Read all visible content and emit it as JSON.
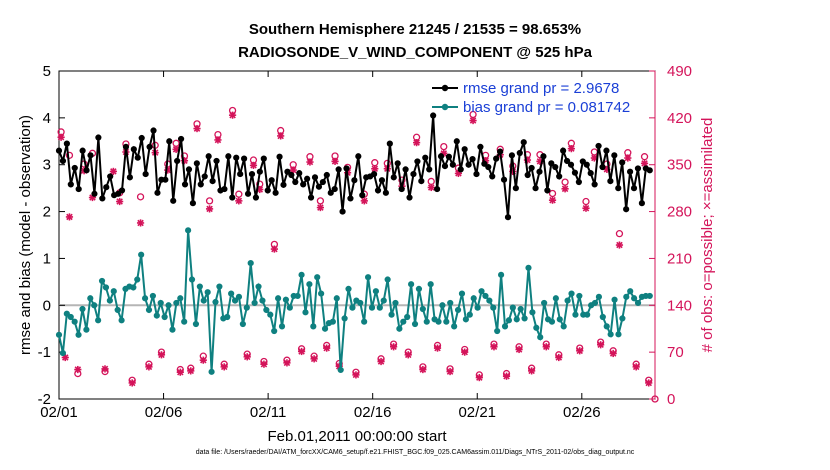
{
  "chart_data": {
    "type": "line",
    "title_line1": "Southern Hemisphere 21245 / 21535 = 98.653%",
    "title_line2": "RADIOSONDE_V_WIND_COMPONENT @ 525 hPa",
    "xlabel": "Feb.01,2011 00:00:00 start",
    "ylabel": "rmse and bias (model - observation)",
    "y2label": "# of obs: o=possible; ×=assimilated",
    "xlim": [
      0,
      28.5
    ],
    "ylim": [
      -2,
      5
    ],
    "y2lim": [
      0,
      490
    ],
    "x_ticks": [
      0,
      5,
      10,
      15,
      20,
      25
    ],
    "x_tick_labels": [
      "02/01",
      "02/06",
      "02/11",
      "02/16",
      "02/21",
      "02/26"
    ],
    "y_ticks": [
      -2,
      -1,
      0,
      1,
      2,
      3,
      4,
      5
    ],
    "y_tick_labels": [
      "-2",
      "-1",
      "0",
      "1",
      "2",
      "3",
      "4",
      "5"
    ],
    "y2_ticks": [
      0,
      70,
      140,
      210,
      280,
      350,
      420,
      490
    ],
    "y2_tick_labels": [
      "0",
      "70",
      "140",
      "210",
      "280",
      "350",
      "420",
      "490"
    ],
    "zero_line": 0,
    "colors": {
      "rmse": "#000000",
      "bias": "#0f8080",
      "obs": "#d4145a",
      "right_axis": "#d4145a"
    },
    "legend": [
      {
        "name": "rmse grand pr = 2.9678",
        "color": "#1a3fd6",
        "marker_color": "#000000"
      },
      {
        "name": "bias grand pr = 0.081742",
        "color": "#1a3fd6",
        "marker_color": "#0f8080"
      }
    ],
    "rmse": [
      3.3,
      3.08,
      3.45,
      2.58,
      2.93,
      2.48,
      3.3,
      2.88,
      3.2,
      2.38,
      3.58,
      2.28,
      2.52,
      2.75,
      2.35,
      2.38,
      2.45,
      3.38,
      2.73,
      3.33,
      3.15,
      3.57,
      2.8,
      3.38,
      3.73,
      2.4,
      2.68,
      2.68,
      3.5,
      2.23,
      3.08,
      3.55,
      2.58,
      2.9,
      2.18,
      3.03,
      2.58,
      2.75,
      3.18,
      2.65,
      3.08,
      2.45,
      2.48,
      3.18,
      2.3,
      3.15,
      2.8,
      3.13,
      2.38,
      2.8,
      2.3,
      2.85,
      3.13,
      2.45,
      2.67,
      2.4,
      3.17,
      2.57,
      2.85,
      2.78,
      2.63,
      2.82,
      2.58,
      2.7,
      2.3,
      2.73,
      2.53,
      2.63,
      2.78,
      2.4,
      2.48,
      2.9,
      2.0,
      2.92,
      2.28,
      2.67,
      3.18,
      2.35,
      2.73,
      2.75,
      2.8,
      2.45,
      2.67,
      2.4,
      3.45,
      2.73,
      3.03,
      2.48,
      2.9,
      2.3,
      2.8,
      3.07,
      2.65,
      3.15,
      2.9,
      4.05,
      2.48,
      3.18,
      2.97,
      3.17,
      3.0,
      3.5,
      2.9,
      3.33,
      3.0,
      3.12,
      2.8,
      3.38,
      3.02,
      2.95,
      2.75,
      3.13,
      3.28,
      2.68,
      1.88,
      3.2,
      2.5,
      3.25,
      3.48,
      2.78,
      2.93,
      2.5,
      2.85,
      3.18,
      2.45,
      3.03,
      2.95,
      2.75,
      3.3,
      3.08,
      3.0,
      2.83,
      2.63,
      3.07,
      3.0,
      2.82,
      2.58,
      3.4,
      2.95,
      3.3,
      2.65,
      3.2,
      2.5,
      3.05,
      2.05,
      2.85,
      2.5,
      2.92,
      2.18,
      2.92,
      2.88
    ],
    "bias": [
      -0.63,
      -1.02,
      -0.18,
      -0.25,
      -0.35,
      -0.63,
      -0.08,
      -0.52,
      0.15,
      0.0,
      -0.32,
      0.52,
      0.38,
      0.1,
      0.3,
      -0.1,
      -0.32,
      0.35,
      0.4,
      0.38,
      0.55,
      1.08,
      0.15,
      -0.1,
      0.2,
      -0.22,
      0.05,
      -0.25,
      0.0,
      -0.52,
      0.05,
      0.15,
      -0.35,
      1.6,
      0.55,
      -0.4,
      0.4,
      0.1,
      0.28,
      -1.42,
      0.07,
      0.4,
      -0.28,
      -0.25,
      0.25,
      0.1,
      0.18,
      -0.4,
      -0.05,
      0.9,
      0.05,
      0.4,
      0.1,
      -0.1,
      -0.2,
      -0.55,
      0.15,
      -0.45,
      0.12,
      -0.05,
      0.2,
      0.2,
      0.65,
      -0.15,
      0.45,
      -0.45,
      0.6,
      0.25,
      -0.5,
      -0.38,
      -0.35,
      0.15,
      -1.38,
      -0.28,
      0.35,
      -0.05,
      0.1,
      0.05,
      -0.35,
      0.6,
      -0.05,
      0.3,
      -0.05,
      0.1,
      0.55,
      -0.2,
      0.05,
      -0.5,
      -0.35,
      -0.25,
      0.45,
      -0.4,
      0.35,
      -0.08,
      -0.35,
      0.45,
      -0.3,
      -0.35,
      0.0,
      -0.35,
      0.05,
      -0.45,
      -0.1,
      0.25,
      -0.3,
      -0.2,
      0.15,
      -0.05,
      0.3,
      0.2,
      0.1,
      -0.05,
      -0.55,
      0.65,
      -0.45,
      -0.32,
      -0.05,
      -0.3,
      -0.08,
      -0.28,
      0.8,
      -0.15,
      -0.48,
      -0.68,
      0.05,
      -0.3,
      -0.35,
      0.15,
      -0.3,
      -0.45,
      0.1,
      0.25,
      -0.2,
      0.2,
      -0.2,
      -0.2,
      0.0,
      0.05,
      0.18,
      -0.25,
      -0.45,
      -0.62,
      0.12,
      -0.62,
      -0.28,
      0.18,
      0.3,
      0.15,
      0.05,
      0.18,
      0.2,
      0.2
    ],
    "obs_possible": [
      [
        0.1,
        399
      ],
      [
        0.5,
        364
      ],
      [
        0.9,
        38
      ],
      [
        1.2,
        351
      ],
      [
        1.6,
        367
      ],
      [
        2.2,
        41
      ],
      [
        2.9,
        308
      ],
      [
        3.2,
        381
      ],
      [
        3.5,
        28
      ],
      [
        3.9,
        302
      ],
      [
        4.3,
        52
      ],
      [
        4.6,
        379
      ],
      [
        4.9,
        70
      ],
      [
        5.2,
        351
      ],
      [
        5.6,
        382
      ],
      [
        5.8,
        44
      ],
      [
        6.0,
        363
      ],
      [
        6.3,
        46
      ],
      [
        6.6,
        411
      ],
      [
        6.9,
        64
      ],
      [
        7.2,
        296
      ],
      [
        7.6,
        395
      ],
      [
        7.9,
        52
      ],
      [
        8.3,
        431
      ],
      [
        8.6,
        306
      ],
      [
        9.0,
        67
      ],
      [
        9.3,
        357
      ],
      [
        9.6,
        321
      ],
      [
        9.8,
        56
      ],
      [
        10.3,
        231
      ],
      [
        10.6,
        401
      ],
      [
        10.9,
        58
      ],
      [
        11.2,
        350
      ],
      [
        11.6,
        75
      ],
      [
        12.0,
        362
      ],
      [
        12.2,
        64
      ],
      [
        12.5,
        296
      ],
      [
        12.8,
        80
      ],
      [
        13.2,
        363
      ],
      [
        13.4,
        53
      ],
      [
        13.8,
        346
      ],
      [
        14.2,
        40
      ],
      [
        14.6,
        306
      ],
      [
        15.1,
        353
      ],
      [
        15.4,
        60
      ],
      [
        15.7,
        352
      ],
      [
        16.0,
        82
      ],
      [
        16.4,
        327
      ],
      [
        16.7,
        70
      ],
      [
        17.1,
        391
      ],
      [
        17.4,
        48
      ],
      [
        17.8,
        325
      ],
      [
        18.1,
        80
      ],
      [
        18.4,
        377
      ],
      [
        18.7,
        45
      ],
      [
        19.1,
        345
      ],
      [
        19.4,
        74
      ],
      [
        19.8,
        425
      ],
      [
        20.1,
        36
      ],
      [
        20.4,
        364
      ],
      [
        20.8,
        82
      ],
      [
        21.1,
        373
      ],
      [
        21.4,
        38
      ],
      [
        21.7,
        348
      ],
      [
        22.0,
        78
      ],
      [
        22.4,
        365
      ],
      [
        22.6,
        46
      ],
      [
        23.0,
        365
      ],
      [
        23.3,
        82
      ],
      [
        23.6,
        307
      ],
      [
        23.9,
        66
      ],
      [
        24.2,
        324
      ],
      [
        24.5,
        382
      ],
      [
        24.9,
        76
      ],
      [
        25.2,
        295
      ],
      [
        25.6,
        369
      ],
      [
        25.9,
        85
      ],
      [
        26.2,
        351
      ],
      [
        26.5,
        72
      ],
      [
        26.8,
        247
      ],
      [
        27.2,
        368
      ],
      [
        27.6,
        52
      ],
      [
        28.0,
        362
      ],
      [
        28.2,
        28
      ],
      [
        28.5,
        0
      ]
    ],
    "obs_assimilated": [
      [
        0.1,
        391
      ],
      [
        0.3,
        62
      ],
      [
        0.5,
        272
      ],
      [
        0.9,
        44
      ],
      [
        1.2,
        341
      ],
      [
        1.6,
        301
      ],
      [
        2.2,
        45
      ],
      [
        2.6,
        340
      ],
      [
        2.9,
        295
      ],
      [
        3.2,
        369
      ],
      [
        3.5,
        24
      ],
      [
        3.9,
        263
      ],
      [
        4.3,
        48
      ],
      [
        4.6,
        368
      ],
      [
        4.9,
        66
      ],
      [
        5.2,
        342
      ],
      [
        5.6,
        373
      ],
      [
        5.8,
        40
      ],
      [
        6.0,
        356
      ],
      [
        6.3,
        42
      ],
      [
        6.6,
        404
      ],
      [
        6.9,
        58
      ],
      [
        7.2,
        284
      ],
      [
        7.6,
        387
      ],
      [
        7.9,
        48
      ],
      [
        8.3,
        424
      ],
      [
        8.6,
        296
      ],
      [
        9.0,
        63
      ],
      [
        9.3,
        349
      ],
      [
        9.6,
        313
      ],
      [
        9.8,
        52
      ],
      [
        10.3,
        224
      ],
      [
        10.6,
        393
      ],
      [
        10.9,
        54
      ],
      [
        11.2,
        342
      ],
      [
        11.6,
        71
      ],
      [
        12.0,
        354
      ],
      [
        12.2,
        60
      ],
      [
        12.5,
        286
      ],
      [
        12.8,
        76
      ],
      [
        13.2,
        355
      ],
      [
        13.4,
        49
      ],
      [
        13.8,
        338
      ],
      [
        14.2,
        36
      ],
      [
        14.6,
        296
      ],
      [
        15.1,
        344
      ],
      [
        15.4,
        56
      ],
      [
        15.7,
        344
      ],
      [
        16.0,
        78
      ],
      [
        16.4,
        318
      ],
      [
        16.7,
        66
      ],
      [
        17.1,
        383
      ],
      [
        17.4,
        44
      ],
      [
        17.8,
        316
      ],
      [
        18.1,
        76
      ],
      [
        18.4,
        367
      ],
      [
        18.7,
        41
      ],
      [
        19.1,
        337
      ],
      [
        19.4,
        70
      ],
      [
        19.8,
        416
      ],
      [
        20.1,
        32
      ],
      [
        20.4,
        356
      ],
      [
        20.8,
        78
      ],
      [
        21.1,
        365
      ],
      [
        21.4,
        34
      ],
      [
        21.7,
        340
      ],
      [
        22.0,
        74
      ],
      [
        22.4,
        357
      ],
      [
        22.6,
        42
      ],
      [
        23.0,
        355
      ],
      [
        23.3,
        78
      ],
      [
        23.6,
        297
      ],
      [
        23.9,
        62
      ],
      [
        24.2,
        314
      ],
      [
        24.5,
        374
      ],
      [
        24.9,
        72
      ],
      [
        25.2,
        285
      ],
      [
        25.6,
        360
      ],
      [
        25.9,
        81
      ],
      [
        26.2,
        343
      ],
      [
        26.5,
        68
      ],
      [
        26.8,
        230
      ],
      [
        27.2,
        360
      ],
      [
        27.6,
        48
      ],
      [
        28.0,
        352
      ],
      [
        28.2,
        24
      ]
    ]
  },
  "footer": "data file: /Users/raeder/DAI/ATM_forcXX/CAM6_setup/f.e21.FHIST_BGC.f09_025.CAM6assim.011/Diags_NTrS_2011-02/obs_diag_output.nc"
}
